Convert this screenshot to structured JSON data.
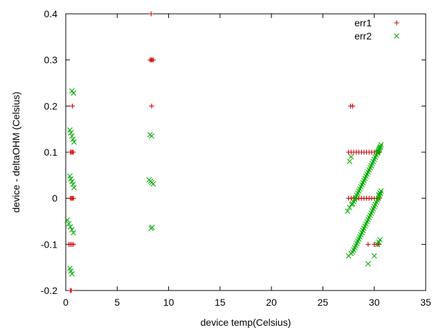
{
  "chart_data": {
    "type": "scatter",
    "title": "",
    "xlabel": "device temp(Celsius)",
    "ylabel": "device - deltaOHM (Celsius)",
    "xlim": [
      0,
      35
    ],
    "ylim": [
      -0.2,
      0.4
    ],
    "x_ticks": [
      0,
      5,
      10,
      15,
      20,
      25,
      30,
      35
    ],
    "y_ticks": [
      -0.2,
      -0.1,
      0,
      0.1,
      0.2,
      0.3,
      0.4
    ],
    "x_tick_labels": [
      "0",
      "5",
      "10",
      "15",
      "20",
      "25",
      "30",
      "35"
    ],
    "y_tick_labels": [
      "-0.2",
      "-0.1",
      "0",
      "0.1",
      "0.2",
      "0.3",
      "0.4"
    ],
    "grid": false,
    "legend_position": "top-right",
    "series": [
      {
        "name": "err1",
        "marker": "plus",
        "color": "#cc0000",
        "points": [
          [
            0.45,
            0.1
          ],
          [
            0.55,
            0.1
          ],
          [
            0.65,
            0.1
          ],
          [
            0.75,
            0.1
          ],
          [
            0.45,
            0.0
          ],
          [
            0.55,
            0.0
          ],
          [
            0.65,
            0.0
          ],
          [
            0.75,
            0.0
          ],
          [
            0.3,
            -0.1
          ],
          [
            0.45,
            -0.1
          ],
          [
            0.6,
            -0.1
          ],
          [
            0.75,
            -0.1
          ],
          [
            0.45,
            -0.2
          ],
          [
            0.55,
            -0.2
          ],
          [
            0.65,
            0.2
          ],
          [
            8.2,
            0.3
          ],
          [
            8.3,
            0.3
          ],
          [
            8.4,
            0.3
          ],
          [
            8.5,
            0.3
          ],
          [
            8.3,
            0.4
          ],
          [
            8.35,
            0.2
          ],
          [
            27.7,
            0.2
          ],
          [
            27.9,
            0.2
          ],
          [
            27.5,
            0.1
          ],
          [
            27.75,
            0.1
          ],
          [
            28.0,
            0.1
          ],
          [
            28.25,
            0.1
          ],
          [
            28.5,
            0.1
          ],
          [
            28.75,
            0.1
          ],
          [
            29.0,
            0.1
          ],
          [
            29.25,
            0.1
          ],
          [
            29.5,
            0.1
          ],
          [
            29.75,
            0.1
          ],
          [
            30.0,
            0.1
          ],
          [
            30.25,
            0.1
          ],
          [
            30.5,
            0.1
          ],
          [
            27.5,
            0.0
          ],
          [
            27.75,
            0.0
          ],
          [
            28.0,
            0.0
          ],
          [
            28.25,
            0.0
          ],
          [
            28.5,
            0.0
          ],
          [
            28.75,
            0.0
          ],
          [
            29.0,
            0.0
          ],
          [
            29.25,
            0.0
          ],
          [
            29.5,
            0.0
          ],
          [
            29.75,
            0.0
          ],
          [
            30.0,
            0.0
          ],
          [
            30.25,
            0.0
          ],
          [
            30.5,
            0.0
          ],
          [
            29.4,
            -0.1
          ],
          [
            30.0,
            -0.1
          ],
          [
            30.3,
            -0.1
          ],
          [
            30.45,
            -0.1
          ]
        ]
      },
      {
        "name": "err2",
        "marker": "cross",
        "color": "#00aa00",
        "points": [
          [
            0.6,
            0.233
          ],
          [
            0.75,
            0.228
          ],
          [
            0.4,
            0.148
          ],
          [
            0.5,
            0.142
          ],
          [
            0.6,
            0.135
          ],
          [
            0.7,
            0.128
          ],
          [
            0.8,
            0.122
          ],
          [
            0.4,
            0.048
          ],
          [
            0.5,
            0.042
          ],
          [
            0.6,
            0.036
          ],
          [
            0.7,
            0.03
          ],
          [
            0.8,
            0.023
          ],
          [
            0.15,
            -0.047
          ],
          [
            0.3,
            -0.055
          ],
          [
            0.45,
            -0.062
          ],
          [
            0.6,
            -0.068
          ],
          [
            0.75,
            -0.075
          ],
          [
            0.4,
            -0.152
          ],
          [
            0.5,
            -0.158
          ],
          [
            0.6,
            -0.164
          ],
          [
            8.2,
            0.138
          ],
          [
            8.35,
            0.135
          ],
          [
            8.1,
            0.04
          ],
          [
            8.25,
            0.037
          ],
          [
            8.35,
            0.034
          ],
          [
            8.5,
            0.031
          ],
          [
            8.3,
            -0.065
          ],
          [
            8.4,
            -0.063
          ],
          [
            27.6,
            0.08
          ],
          [
            27.75,
            0.09
          ],
          [
            27.5,
            -0.125
          ],
          [
            27.75,
            -0.12
          ],
          [
            27.9,
            -0.117
          ],
          [
            29.4,
            -0.142
          ],
          [
            30.0,
            -0.125
          ],
          [
            30.3,
            -0.1
          ],
          [
            30.45,
            -0.095
          ],
          [
            30.55,
            -0.09
          ],
          [
            27.4,
            -0.028
          ],
          [
            27.6,
            -0.02
          ],
          [
            27.8,
            -0.013
          ],
          [
            30.45,
            0.008
          ],
          [
            30.55,
            0.012
          ],
          [
            30.65,
            0.016
          ],
          [
            30.35,
            0.1
          ],
          [
            30.45,
            0.105
          ],
          [
            30.55,
            0.11
          ],
          [
            30.65,
            0.116
          ]
        ],
        "lines": [
          {
            "from": [
              27.9,
              -0.012
            ],
            "to": [
              30.6,
              0.112
            ],
            "count": 28
          },
          {
            "from": [
              28.0,
              -0.112
            ],
            "to": [
              30.6,
              0.01
            ],
            "count": 27
          }
        ]
      }
    ]
  }
}
